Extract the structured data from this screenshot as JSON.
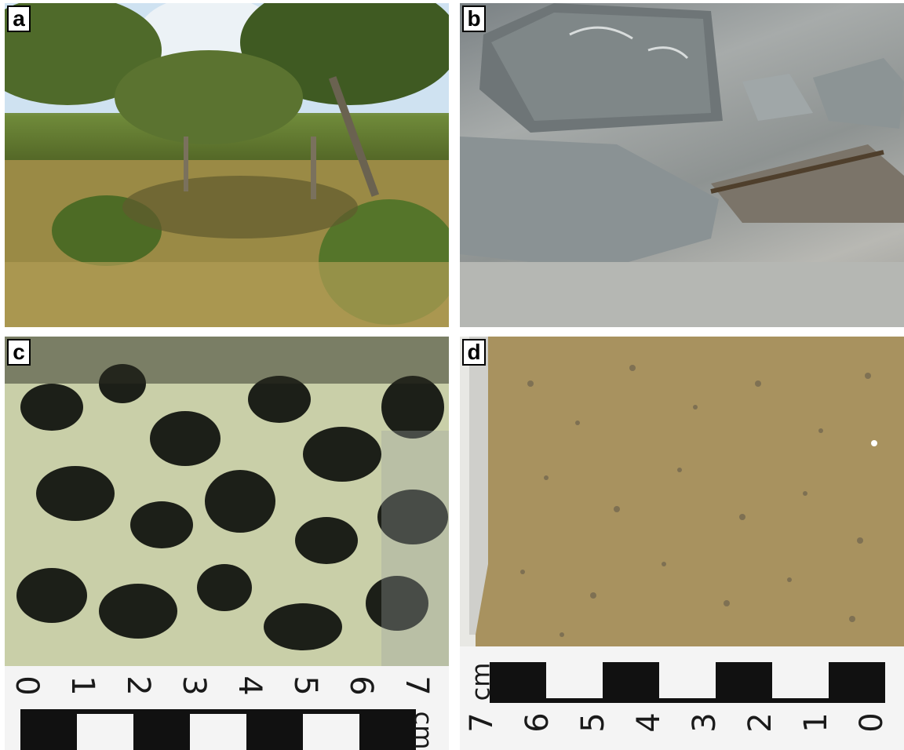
{
  "panels": {
    "a": {
      "label": "a"
    },
    "b": {
      "label": "b"
    },
    "c": {
      "label": "c"
    },
    "d": {
      "label": "d"
    }
  },
  "scale_c": {
    "numbers": [
      "0",
      "1",
      "2",
      "3",
      "4",
      "5",
      "6",
      "7"
    ],
    "unit": "cm"
  },
  "scale_d": {
    "numbers": [
      "7",
      "6",
      "5",
      "4",
      "3",
      "2",
      "1",
      "0"
    ],
    "unit": "cm"
  },
  "colors": {
    "foliage": "#4d5f22",
    "rock_gray": "#8e9392",
    "gabbro_dark": "#1a1c17",
    "gabbro_light": "#d9dfbf",
    "granite_tan": "#a8925f"
  }
}
